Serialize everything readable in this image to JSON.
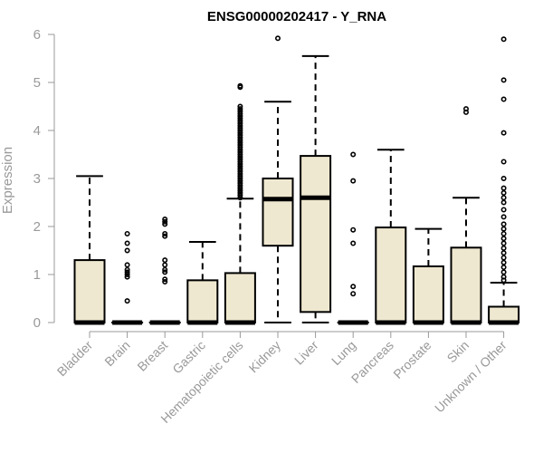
{
  "chart_data": {
    "type": "boxplot",
    "title": "ENSG00000202417 - Y_RNA",
    "xlabel": "",
    "ylabel": "Expression",
    "ylim": [
      0,
      6
    ],
    "yticks": [
      0,
      1,
      2,
      3,
      4,
      5,
      6
    ],
    "grid": false,
    "legend": "none",
    "colors": {
      "box_fill": "#efe8d0",
      "box_stroke": "#000000",
      "axis": "#999999"
    },
    "categories": [
      "Bladder",
      "Brain",
      "Breast",
      "Gastric",
      "Hematopoietic cells",
      "Kidney",
      "Liver",
      "Lung",
      "Pancreas",
      "Prostate",
      "Skin",
      "Unknown / Other"
    ],
    "boxes": [
      {
        "category": "Bladder",
        "whisker_low": 0,
        "q1": 0,
        "median": 0,
        "q3": 1.3,
        "whisker_high": 3.05,
        "outliers": []
      },
      {
        "category": "Brain",
        "whisker_low": 0,
        "q1": 0,
        "median": 0,
        "q3": 0,
        "whisker_high": 0,
        "outliers": [
          0.45,
          0.95,
          1.0,
          1.05,
          1.1,
          1.2,
          1.5,
          1.65,
          1.85
        ]
      },
      {
        "category": "Breast",
        "whisker_low": 0,
        "q1": 0,
        "median": 0,
        "q3": 0,
        "whisker_high": 0,
        "outliers": [
          0.85,
          0.9,
          1.05,
          1.1,
          1.2,
          1.3,
          1.8,
          1.85,
          2.05,
          2.1,
          2.15
        ]
      },
      {
        "category": "Gastric",
        "whisker_low": 0,
        "q1": 0,
        "median": 0,
        "q3": 0.88,
        "whisker_high": 1.68,
        "outliers": []
      },
      {
        "category": "Hematopoietic cells",
        "whisker_low": 0,
        "q1": 0,
        "median": 0,
        "q3": 1.03,
        "whisker_high": 2.58,
        "outliers": [
          2.6,
          2.65,
          2.7,
          2.75,
          2.8,
          2.85,
          2.9,
          2.95,
          3.0,
          3.05,
          3.1,
          3.15,
          3.2,
          3.25,
          3.3,
          3.35,
          3.4,
          3.45,
          3.5,
          3.55,
          3.6,
          3.65,
          3.7,
          3.75,
          3.8,
          3.85,
          3.9,
          3.95,
          4.0,
          4.05,
          4.1,
          4.15,
          4.2,
          4.25,
          4.3,
          4.35,
          4.4,
          4.45,
          4.5,
          4.9,
          4.93
        ]
      },
      {
        "category": "Kidney",
        "whisker_low": 0,
        "q1": 1.6,
        "median": 2.57,
        "q3": 3.0,
        "whisker_high": 4.6,
        "outliers": [
          5.92
        ]
      },
      {
        "category": "Liver",
        "whisker_low": 0,
        "q1": 0.22,
        "median": 2.6,
        "q3": 3.47,
        "whisker_high": 5.55,
        "outliers": []
      },
      {
        "category": "Lung",
        "whisker_low": 0,
        "q1": 0,
        "median": 0,
        "q3": 0,
        "whisker_high": 0,
        "outliers": [
          0.6,
          0.75,
          1.65,
          1.93,
          2.95,
          3.5
        ]
      },
      {
        "category": "Pancreas",
        "whisker_low": 0,
        "q1": 0,
        "median": 0,
        "q3": 1.98,
        "whisker_high": 3.6,
        "outliers": []
      },
      {
        "category": "Prostate",
        "whisker_low": 0,
        "q1": 0,
        "median": 0,
        "q3": 1.17,
        "whisker_high": 1.95,
        "outliers": []
      },
      {
        "category": "Skin",
        "whisker_low": 0,
        "q1": 0,
        "median": 0,
        "q3": 1.56,
        "whisker_high": 2.6,
        "outliers": [
          4.38,
          4.45
        ]
      },
      {
        "category": "Unknown / Other",
        "whisker_low": 0,
        "q1": 0,
        "median": 0,
        "q3": 0.33,
        "whisker_high": 0.83,
        "outliers": [
          0.88,
          0.95,
          1.05,
          1.15,
          1.25,
          1.35,
          1.45,
          1.55,
          1.65,
          1.75,
          1.85,
          1.95,
          2.05,
          2.2,
          2.35,
          2.5,
          2.6,
          2.7,
          2.8,
          3.0,
          3.35,
          3.95,
          4.65,
          5.05,
          5.9
        ]
      }
    ]
  }
}
